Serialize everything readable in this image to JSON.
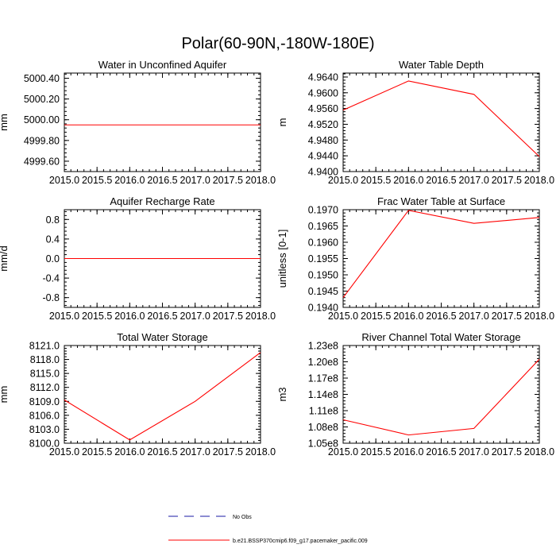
{
  "title": "Polar(60-90N,-180W-180E)",
  "colors": {
    "model": "#ff0000",
    "obs": "#1a1aa6",
    "axis": "#000000"
  },
  "chart_data": [
    {
      "type": "line",
      "title": "Water in Unconfined Aquifer",
      "xlabel": "",
      "ylabel": "mm",
      "xlim": [
        2015.0,
        2018.0
      ],
      "ylim": [
        4999.5,
        5000.45
      ],
      "yticks": [
        4999.6,
        4999.8,
        5000.0,
        5000.2,
        5000.4
      ],
      "ytick_labels": [
        "4999.60",
        "4999.80",
        "5000.00",
        "5000.20",
        "5000.40"
      ],
      "xticks": [
        2015.0,
        2015.5,
        2016.0,
        2016.5,
        2017.0,
        2017.5,
        2018.0
      ],
      "xtick_labels": [
        "2015.0",
        "2015.5",
        "2016.0",
        "2016.5",
        "2017.0",
        "2017.5",
        "2018.0"
      ],
      "series": [
        {
          "name": "b.e21.BSSP370cmip6.f09_g17.pacemaker_pacific.009",
          "x": [
            2015,
            2016,
            2017,
            2018
          ],
          "values": [
            4999.95,
            4999.95,
            4999.95,
            4999.95
          ]
        }
      ]
    },
    {
      "type": "line",
      "title": "Water Table Depth",
      "xlabel": "",
      "ylabel": "m",
      "xlim": [
        2015.0,
        2018.0
      ],
      "ylim": [
        4.94,
        4.965
      ],
      "yticks": [
        4.94,
        4.944,
        4.948,
        4.952,
        4.956,
        4.96,
        4.964
      ],
      "ytick_labels": [
        "4.9400",
        "4.9440",
        "4.9480",
        "4.9520",
        "4.9560",
        "4.9600",
        "4.9640"
      ],
      "xticks": [
        2015.0,
        2015.5,
        2016.0,
        2016.5,
        2017.0,
        2017.5,
        2018.0
      ],
      "xtick_labels": [
        "2015.0",
        "2015.5",
        "2016.0",
        "2016.5",
        "2017.0",
        "2017.5",
        "2018.0"
      ],
      "series": [
        {
          "name": "b.e21.BSSP370cmip6.f09_g17.pacemaker_pacific.009",
          "x": [
            2015,
            2016,
            2017,
            2018
          ],
          "values": [
            4.9556,
            4.963,
            4.9596,
            4.9438
          ]
        }
      ]
    },
    {
      "type": "line",
      "title": "Aquifer Recharge Rate",
      "xlabel": "",
      "ylabel": "mm/d",
      "xlim": [
        2015.0,
        2018.0
      ],
      "ylim": [
        -1.0,
        1.0
      ],
      "yticks": [
        -0.8,
        -0.4,
        0.0,
        0.4,
        0.8
      ],
      "ytick_labels": [
        "-0.8",
        "-0.4",
        "0.0",
        "0.4",
        "0.8"
      ],
      "xticks": [
        2015.0,
        2015.5,
        2016.0,
        2016.5,
        2017.0,
        2017.5,
        2018.0
      ],
      "xtick_labels": [
        "2015.0",
        "2015.5",
        "2016.0",
        "2016.5",
        "2017.0",
        "2017.5",
        "2018.0"
      ],
      "series": [
        {
          "name": "b.e21.BSSP370cmip6.f09_g17.pacemaker_pacific.009",
          "x": [
            2015,
            2016,
            2017,
            2018
          ],
          "values": [
            0.0,
            0.0,
            0.0,
            0.0
          ]
        }
      ]
    },
    {
      "type": "line",
      "title": "Frac Water Table at Surface",
      "xlabel": "",
      "ylabel": "unitless [0-1]",
      "xlim": [
        2015.0,
        2018.0
      ],
      "ylim": [
        0.194,
        0.197
      ],
      "yticks": [
        0.194,
        0.1945,
        0.195,
        0.1955,
        0.196,
        0.1965,
        0.197
      ],
      "ytick_labels": [
        "0.1940",
        "0.1945",
        "0.1950",
        "0.1955",
        "0.1960",
        "0.1965",
        "0.1970"
      ],
      "xticks": [
        2015.0,
        2015.5,
        2016.0,
        2016.5,
        2017.0,
        2017.5,
        2018.0
      ],
      "xtick_labels": [
        "2015.0",
        "2015.5",
        "2016.0",
        "2016.5",
        "2017.0",
        "2017.5",
        "2018.0"
      ],
      "series": [
        {
          "name": "b.e21.BSSP370cmip6.f09_g17.pacemaker_pacific.009",
          "x": [
            2015,
            2016,
            2017,
            2018
          ],
          "values": [
            0.1943,
            0.19698,
            0.19658,
            0.19676
          ]
        }
      ]
    },
    {
      "type": "line",
      "title": "Total Water Storage",
      "xlabel": "",
      "ylabel": "mm",
      "xlim": [
        2015.0,
        2018.0
      ],
      "ylim": [
        8100.0,
        8121.0
      ],
      "yticks": [
        8100.0,
        8103.0,
        8106.0,
        8109.0,
        8112.0,
        8115.0,
        8118.0,
        8121.0
      ],
      "ytick_labels": [
        "8100.0",
        "8103.0",
        "8106.0",
        "8109.0",
        "8112.0",
        "8115.0",
        "8118.0",
        "8121.0"
      ],
      "xticks": [
        2015.0,
        2015.5,
        2016.0,
        2016.5,
        2017.0,
        2017.5,
        2018.0
      ],
      "xtick_labels": [
        "2015.0",
        "2015.5",
        "2016.0",
        "2016.5",
        "2017.0",
        "2017.5",
        "2018.0"
      ],
      "series": [
        {
          "name": "b.e21.BSSP370cmip6.f09_g17.pacemaker_pacific.009",
          "x": [
            2015,
            2016,
            2017,
            2018
          ],
          "values": [
            8109.3,
            8100.7,
            8109.0,
            8119.5
          ]
        }
      ]
    },
    {
      "type": "line",
      "title": "River Channel Total Water Storage",
      "xlabel": "",
      "ylabel": "m3",
      "xlim": [
        2015.0,
        2018.0
      ],
      "ylim": [
        105000000.0,
        123000000.0
      ],
      "yticks": [
        105000000.0,
        108000000.0,
        111000000.0,
        114000000.0,
        117000000.0,
        120000000.0,
        123000000.0
      ],
      "ytick_labels": [
        "1.05e8",
        "1.08e8",
        "1.11e8",
        "1.14e8",
        "1.17e8",
        "1.20e8",
        "1.23e8"
      ],
      "xticks": [
        2015.0,
        2015.5,
        2016.0,
        2016.5,
        2017.0,
        2017.5,
        2018.0
      ],
      "xtick_labels": [
        "2015.0",
        "2015.5",
        "2016.0",
        "2016.5",
        "2017.0",
        "2017.5",
        "2018.0"
      ],
      "series": [
        {
          "name": "b.e21.BSSP370cmip6.f09_g17.pacemaker_pacific.009",
          "x": [
            2015,
            2016,
            2017,
            2018
          ],
          "values": [
            109320000.0,
            106520000.0,
            107720000.0,
            120480000.0
          ]
        }
      ]
    }
  ],
  "legend": {
    "items": [
      {
        "label": "No Obs",
        "style": "dashed",
        "color": "#1a1aa6"
      },
      {
        "label": "b.e21.BSSP370cmip6.f09_g17.pacemaker_pacific.009",
        "style": "solid",
        "color": "#ff0000"
      }
    ]
  }
}
